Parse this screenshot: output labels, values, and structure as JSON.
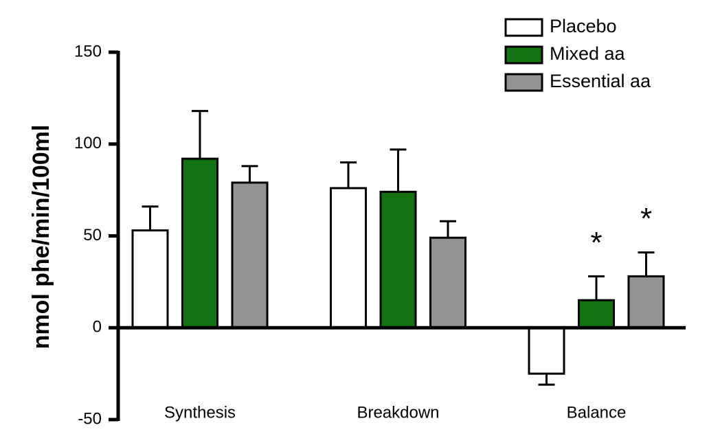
{
  "chart_data": {
    "type": "bar",
    "y_label": "nmol phe/min/100ml",
    "categories": [
      "Synthesis",
      "Breakdown",
      "Balance"
    ],
    "series": [
      {
        "name": "Placebo",
        "color": "#ffffff",
        "values": [
          53,
          76,
          -25
        ],
        "errors": [
          13,
          14,
          6
        ]
      },
      {
        "name": "Mixed aa",
        "color": "#137313",
        "values": [
          92,
          74,
          15
        ],
        "errors": [
          26,
          23,
          13
        ]
      },
      {
        "name": "Essential aa",
        "color": "#939393",
        "values": [
          79,
          49,
          28
        ],
        "errors": [
          9,
          9,
          13
        ]
      }
    ],
    "annotations": [
      "*",
      "*"
    ],
    "ylim": [
      -50,
      150
    ],
    "yticks": [
      -50,
      0,
      50,
      100,
      150
    ],
    "legend": "upper right"
  }
}
